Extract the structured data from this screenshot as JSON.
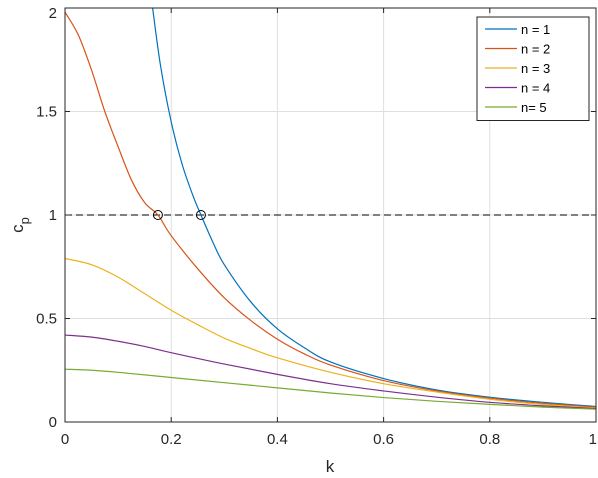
{
  "chart_data": {
    "type": "line",
    "title": "",
    "xlabel": "k",
    "ylabel": "c",
    "ylabel_subscript": "p",
    "xlim": [
      0,
      1
    ],
    "ylim": [
      0,
      2
    ],
    "xticks": [
      0,
      0.2,
      0.4,
      0.6,
      0.8,
      1
    ],
    "xtick_labels": [
      "0",
      "0.2",
      "0.4",
      "0.6",
      "0.8",
      "1"
    ],
    "yticks": [
      0,
      0.5,
      1,
      1.5,
      2
    ],
    "ytick_labels": [
      "0",
      "0.5",
      "1",
      "1.5",
      "2"
    ],
    "grid": true,
    "legend_position": "top-right",
    "reference_line": {
      "y": 1,
      "style": "dashed",
      "color": "#000000"
    },
    "markers": [
      {
        "x": 0.175,
        "y": 1,
        "shape": "circle"
      },
      {
        "x": 0.256,
        "y": 1,
        "shape": "circle"
      }
    ],
    "series": [
      {
        "name": "n = 1",
        "color": "#0072BD",
        "x": [
          0.165,
          0.18,
          0.2,
          0.22,
          0.24,
          0.256,
          0.28,
          0.3,
          0.35,
          0.4,
          0.45,
          0.5,
          0.6,
          0.7,
          0.8,
          0.9,
          1.0
        ],
        "y": [
          2.0,
          1.72,
          1.45,
          1.25,
          1.1,
          1.0,
          0.86,
          0.76,
          0.58,
          0.45,
          0.36,
          0.29,
          0.21,
          0.155,
          0.12,
          0.095,
          0.075
        ]
      },
      {
        "name": "n = 2",
        "color": "#D95319",
        "x": [
          0,
          0.025,
          0.05,
          0.075,
          0.1,
          0.125,
          0.15,
          0.175,
          0.2,
          0.25,
          0.3,
          0.35,
          0.4,
          0.45,
          0.5,
          0.6,
          0.7,
          0.8,
          0.9,
          1.0
        ],
        "y": [
          1.98,
          1.87,
          1.7,
          1.5,
          1.33,
          1.17,
          1.06,
          1.0,
          0.9,
          0.74,
          0.6,
          0.49,
          0.4,
          0.33,
          0.275,
          0.2,
          0.15,
          0.115,
          0.09,
          0.072
        ]
      },
      {
        "name": "n = 3",
        "color": "#EDB120",
        "x": [
          0,
          0.05,
          0.1,
          0.15,
          0.2,
          0.25,
          0.3,
          0.35,
          0.4,
          0.5,
          0.6,
          0.7,
          0.8,
          0.9,
          1.0
        ],
        "y": [
          0.79,
          0.76,
          0.7,
          0.62,
          0.54,
          0.47,
          0.405,
          0.355,
          0.31,
          0.24,
          0.185,
          0.145,
          0.11,
          0.085,
          0.068
        ]
      },
      {
        "name": "n = 4",
        "color": "#7E2F8E",
        "x": [
          0,
          0.05,
          0.1,
          0.15,
          0.2,
          0.3,
          0.4,
          0.5,
          0.6,
          0.7,
          0.8,
          0.9,
          1.0
        ],
        "y": [
          0.42,
          0.41,
          0.39,
          0.365,
          0.335,
          0.28,
          0.23,
          0.185,
          0.15,
          0.12,
          0.095,
          0.078,
          0.065
        ]
      },
      {
        "name": "n= 5",
        "color": "#77AC30",
        "x": [
          0,
          0.05,
          0.1,
          0.2,
          0.3,
          0.4,
          0.5,
          0.6,
          0.7,
          0.8,
          0.9,
          1.0
        ],
        "y": [
          0.255,
          0.25,
          0.24,
          0.215,
          0.19,
          0.165,
          0.14,
          0.118,
          0.1,
          0.085,
          0.072,
          0.062
        ]
      }
    ]
  }
}
